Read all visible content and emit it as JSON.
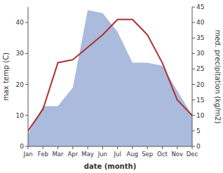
{
  "chart_data": {
    "type": "line",
    "categories": [
      "Jan",
      "Feb",
      "Mar",
      "Apr",
      "May",
      "Jun",
      "Jul",
      "Aug",
      "Sep",
      "Oct",
      "Nov",
      "Dec"
    ],
    "series": [
      {
        "type": "area",
        "axis": "y2",
        "color": "#aabbdd",
        "values": [
          4,
          13,
          13,
          19,
          44,
          43,
          37,
          27,
          27,
          26,
          18,
          10
        ]
      },
      {
        "type": "line",
        "color": "#b03030",
        "values": [
          5,
          12,
          27,
          28,
          32,
          36,
          41,
          41,
          36,
          27,
          15,
          10
        ]
      }
    ],
    "x_label": "date (month)",
    "y_label": "max temp (C)",
    "y2_label": "med. precipitation (kg/m2)",
    "ylim": [
      0,
      45
    ],
    "yticks": [
      0,
      10,
      20,
      30,
      40
    ],
    "y2lim": [
      0,
      45
    ],
    "y2ticks": [
      0,
      5,
      10,
      15,
      20,
      25,
      30,
      35,
      40,
      45
    ],
    "grid": false
  }
}
